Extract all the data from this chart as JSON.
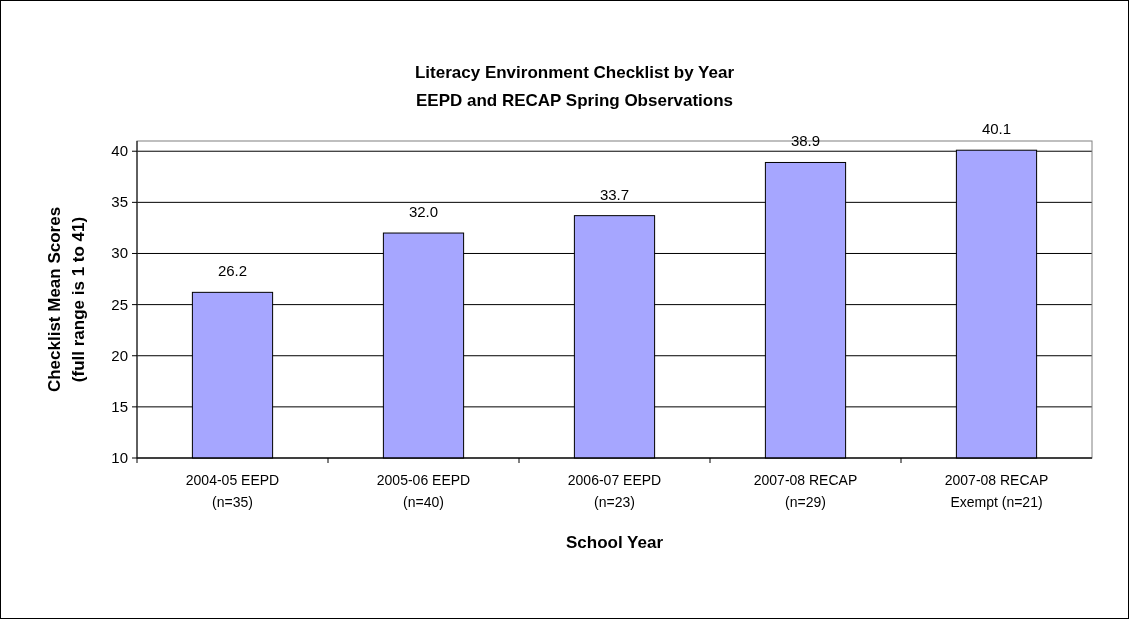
{
  "chart_data": {
    "type": "bar",
    "title": "Literacy Environment Checklist by Year",
    "subtitle": "EEPD and RECAP Spring Observations",
    "xlabel": "School Year",
    "ylabel": "Checklist Mean Scores\n(full range is 1 to 41)",
    "categories": [
      "2004-05 EEPD\n(n=35)",
      "2005-06 EEPD\n(n=40)",
      "2006-07 EEPD\n(n=23)",
      "2007-08 RECAP\n(n=29)",
      "2007-08 RECAP\nExempt (n=21)"
    ],
    "values": [
      26.2,
      32.0,
      33.7,
      38.9,
      40.1
    ],
    "value_labels": [
      "26.2",
      "32.0",
      "33.7",
      "38.9",
      "40.1"
    ],
    "color": "#a6a6ff",
    "ylim": [
      10,
      41
    ],
    "yticks": [
      10,
      15,
      20,
      25,
      30,
      35,
      40
    ],
    "grid": "y"
  }
}
